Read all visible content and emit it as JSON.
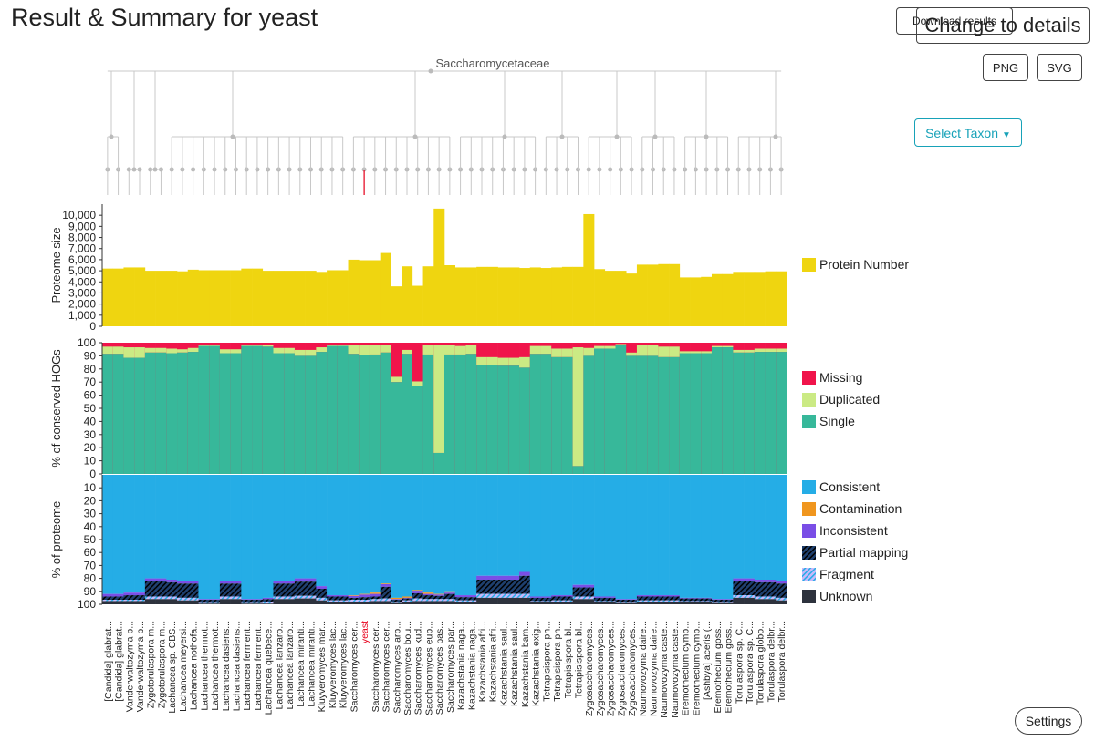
{
  "header": {
    "title": "Result & Summary for yeast",
    "download_label": "Download results",
    "change_label": "Change to details",
    "png_label": "PNG",
    "svg_label": "SVG",
    "select_taxon_label": "Select Taxon",
    "settings_label": "Settings"
  },
  "tree": {
    "root_label": "Saccharomycetaceae",
    "highlight_color": "#e8001c"
  },
  "chart_data": {
    "type": "bar",
    "highlight_label": "yeast",
    "highlight_index": 24,
    "categories": [
      "[Candida] glabrat...",
      "[Candida] glabrat...",
      "Vanderwaltozyma p...",
      "Vanderwaltozyma p...",
      "Zygotorulaspora m...",
      "Zygotorulaspora m...",
      "Lachancea sp. CBS...",
      "Lachancea meyersi...",
      "Lachancea nothofa...",
      "Lachancea thermot...",
      "Lachancea thermot...",
      "Lachancea dasiens...",
      "Lachancea dasiens...",
      "Lachancea ferment...",
      "Lachancea ferment...",
      "Lachancea quebece...",
      "Lachancea lanzaro...",
      "Lachancea lanzaro...",
      "Lachancea miranti...",
      "Lachancea miranti...",
      "Kluyveromyces mar...",
      "Kluyveromyces lac...",
      "Kluyveromyces lac...",
      "Saccharomyces cer...",
      "yeast",
      "Saccharomyces cer...",
      "Saccharomyces cer...",
      "Saccharomyces arb...",
      "Saccharomyces bou...",
      "Saccharomyces kud...",
      "Saccharomyces eub...",
      "Saccharomyces pas...",
      "Saccharomyces par...",
      "Kazachstania naga...",
      "Kazachstania naga...",
      "Kazachstania afri...",
      "Kazachstania afri...",
      "Kazachstania saul...",
      "Kazachstania saul...",
      "Kazachstania bam...",
      "Kazachstania exig...",
      "Tetrapisispora ph...",
      "Tetrapisispora ph...",
      "Tetrapisispora bl...",
      "Tetrapisispora bl...",
      "Zygosaccharomyces...",
      "Zygosaccharomyces...",
      "Zygosaccharomyces...",
      "Zygosaccharomyces...",
      "Zygosaccharomyces...",
      "Naumovozyma daire...",
      "Naumovozyma daire...",
      "Naumovozyma caste...",
      "Naumovozyma caste...",
      "Eremothecium cymb...",
      "Eremothecium cymb...",
      "[Ashbya] aceris (...",
      "Eremothecium goss...",
      "Eremothecium goss...",
      "Torulaspora sp. C...",
      "Torulaspora sp. C...",
      "Torulaspora globo...",
      "Torulaspora delbr...",
      "Torulaspora delbr..."
    ],
    "proteome": {
      "ylabel": "Proteome size",
      "ticks": [
        "0",
        "1,000",
        "2,000",
        "3,000",
        "4,000",
        "5,000",
        "6,000",
        "7,000",
        "8,000",
        "9,000",
        "10,000"
      ],
      "ylim": [
        0,
        11000
      ],
      "legend": "Protein Number",
      "color": "#efd510",
      "values": [
        5200,
        5200,
        5300,
        5300,
        5000,
        5000,
        5000,
        4950,
        5100,
        5050,
        5050,
        5050,
        5050,
        5200,
        5200,
        5000,
        5000,
        5000,
        5000,
        5000,
        4900,
        5050,
        5050,
        6000,
        5950,
        5950,
        6600,
        3600,
        5400,
        3650,
        5400,
        10600,
        5500,
        5300,
        5300,
        5350,
        5350,
        5300,
        5300,
        5250,
        5300,
        5250,
        5300,
        5350,
        5350,
        10100,
        5150,
        5000,
        5000,
        4750,
        5550,
        5550,
        5600,
        5600,
        4400,
        4400,
        4450,
        4700,
        4700,
        4900,
        4900,
        4900,
        4950,
        4950
      ]
    },
    "hogs": {
      "ylabel": "% of conserved HOGs",
      "ticks": [
        "0",
        "10",
        "20",
        "30",
        "40",
        "50",
        "60",
        "70",
        "80",
        "90",
        "100"
      ],
      "ylim": [
        0,
        100
      ],
      "legend": [
        "Missing",
        "Duplicated",
        "Single"
      ],
      "colors": {
        "Missing": "#f0144b",
        "Duplicated": "#cbea84",
        "Single": "#37b89a"
      },
      "single": [
        91.5,
        91.5,
        88.5,
        88.5,
        92.5,
        92.5,
        92,
        92.5,
        93,
        97.5,
        97.5,
        92,
        92,
        97.5,
        97.5,
        97,
        92,
        92,
        90,
        90,
        93,
        97.5,
        97.5,
        91.5,
        90.5,
        91,
        92.5,
        70,
        91.5,
        67,
        91,
        16,
        91,
        91,
        91.5,
        83,
        83,
        82.5,
        82.5,
        81,
        91.5,
        91.5,
        89,
        89,
        6,
        90,
        95.5,
        95.5,
        98,
        90,
        90,
        90,
        89,
        89,
        92,
        92,
        92,
        96.5,
        96.5,
        92.5,
        92.5,
        93,
        93,
        93
      ],
      "duplicated": [
        5.5,
        5.5,
        8,
        8,
        3.5,
        3.5,
        3.5,
        2.5,
        3,
        1,
        1,
        3,
        3,
        1,
        1,
        1.5,
        4,
        4,
        4.5,
        4.5,
        3.5,
        1,
        1,
        6.5,
        8,
        7,
        6,
        4,
        3,
        3.5,
        7,
        82,
        7,
        6.5,
        6.5,
        6,
        6,
        6,
        6,
        8,
        6,
        6,
        6.5,
        6.5,
        90.5,
        6,
        2,
        2,
        1,
        2.5,
        8,
        8,
        8,
        8,
        1.5,
        1.5,
        1.5,
        1,
        1,
        2,
        2,
        2.5,
        2.5,
        2.5
      ]
    },
    "proteome_pct": {
      "ylabel": "% of proteome",
      "ticks": [
        "10",
        "20",
        "30",
        "40",
        "50",
        "60",
        "70",
        "80",
        "90",
        "100"
      ],
      "ylim": [
        0,
        100
      ],
      "legend": [
        "Consistent",
        "Contamination",
        "Inconsistent",
        "Partial mapping",
        "Fragment",
        "Unknown"
      ],
      "colors": {
        "Consistent": "#25ade6",
        "Contamination": "#f0961e",
        "Inconsistent": "#7a4ee6",
        "Partial mapping": "#1e3f6e",
        "Fragment": "#a78cf5",
        "Unknown": "#2d323d"
      },
      "consistent": [
        92,
        92,
        91,
        91,
        80,
        80,
        81,
        82,
        82,
        96,
        96,
        82,
        82,
        96,
        96,
        95,
        82,
        82,
        80,
        80,
        86,
        93,
        93,
        93,
        92,
        91,
        84,
        95,
        94,
        89,
        91,
        92,
        90,
        93,
        93,
        78,
        78,
        78,
        78,
        75,
        94,
        94,
        93,
        93,
        85,
        85,
        94,
        94,
        96,
        96,
        93,
        93,
        93,
        93,
        95,
        95,
        95,
        96,
        96,
        80,
        80,
        81,
        81,
        82
      ],
      "contamination": [
        0,
        0,
        0,
        0,
        0,
        0,
        0,
        0,
        0,
        0,
        0,
        0,
        0,
        0,
        0,
        0,
        0,
        0,
        0,
        0,
        0,
        0,
        0,
        0.5,
        0.5,
        1,
        0.5,
        1,
        1,
        0.5,
        1,
        0.5,
        1,
        0,
        0,
        0,
        0,
        0,
        0,
        0,
        0,
        0,
        0,
        0,
        0,
        0,
        0,
        0,
        0,
        0,
        0,
        0,
        0,
        0,
        0,
        0,
        0,
        0,
        0,
        0,
        0,
        0,
        0,
        0
      ],
      "inconsistent": [
        2,
        2,
        2,
        2,
        2,
        2,
        2,
        2,
        2,
        0.5,
        0.5,
        2,
        2,
        0.5,
        0.5,
        1,
        2,
        2,
        2.5,
        2.5,
        2,
        1,
        1,
        1.5,
        2,
        2,
        2,
        0.5,
        0.5,
        2,
        1,
        1,
        1,
        1.5,
        1.5,
        3,
        3,
        3,
        3,
        3,
        1,
        1,
        1,
        1,
        2,
        2,
        1,
        1,
        0.5,
        0.5,
        1,
        1,
        1,
        1,
        0.5,
        0.5,
        0.5,
        0.5,
        0.5,
        2,
        2,
        2,
        2,
        2
      ],
      "partial": [
        2.5,
        2.5,
        3.5,
        3.5,
        12,
        12,
        11,
        11,
        11,
        2.5,
        2.5,
        10,
        10,
        2.5,
        2.5,
        2.5,
        10,
        10,
        11,
        11,
        7,
        3,
        3,
        1.5,
        2,
        2,
        9,
        1.5,
        1.5,
        4,
        3,
        2.5,
        4,
        2.5,
        2.5,
        11,
        11,
        11,
        11,
        14,
        2.5,
        2.5,
        3,
        3,
        7,
        7,
        2.5,
        2.5,
        2,
        2,
        3,
        3,
        3,
        3,
        2,
        2,
        2,
        1.5,
        1.5,
        11,
        11,
        11,
        11,
        11
      ],
      "fragment": [
        1,
        1,
        1,
        1,
        2,
        2,
        2,
        2,
        2,
        0.5,
        0.5,
        2,
        2,
        0.5,
        0.5,
        1,
        2,
        2,
        2,
        2,
        2,
        1,
        1,
        1.5,
        1.5,
        1.5,
        2,
        1,
        1,
        2,
        1.5,
        1.5,
        1.5,
        1,
        1,
        3,
        3,
        3,
        3,
        3,
        1,
        1,
        1,
        1,
        2,
        2,
        1,
        1,
        0.5,
        0.5,
        1,
        1,
        1,
        1,
        1,
        1,
        1,
        1,
        1,
        2,
        2,
        2,
        2,
        2
      ],
      "unknown": [
        2.5,
        2.5,
        2.5,
        2.5,
        4,
        4,
        4,
        3,
        3,
        0.5,
        0.5,
        4,
        4,
        0.5,
        0.5,
        0.5,
        4,
        4,
        4.5,
        4.5,
        3,
        2,
        2,
        2,
        2,
        2.5,
        2.5,
        1,
        2,
        2.5,
        2.5,
        2.5,
        2.5,
        2,
        2,
        5,
        5,
        5,
        5,
        5,
        1.5,
        1.5,
        2,
        2,
        4,
        4,
        1.5,
        1.5,
        1,
        1,
        2,
        2,
        2,
        2,
        1.5,
        1.5,
        1.5,
        1,
        1,
        5,
        5,
        4,
        4,
        3
      ]
    }
  }
}
